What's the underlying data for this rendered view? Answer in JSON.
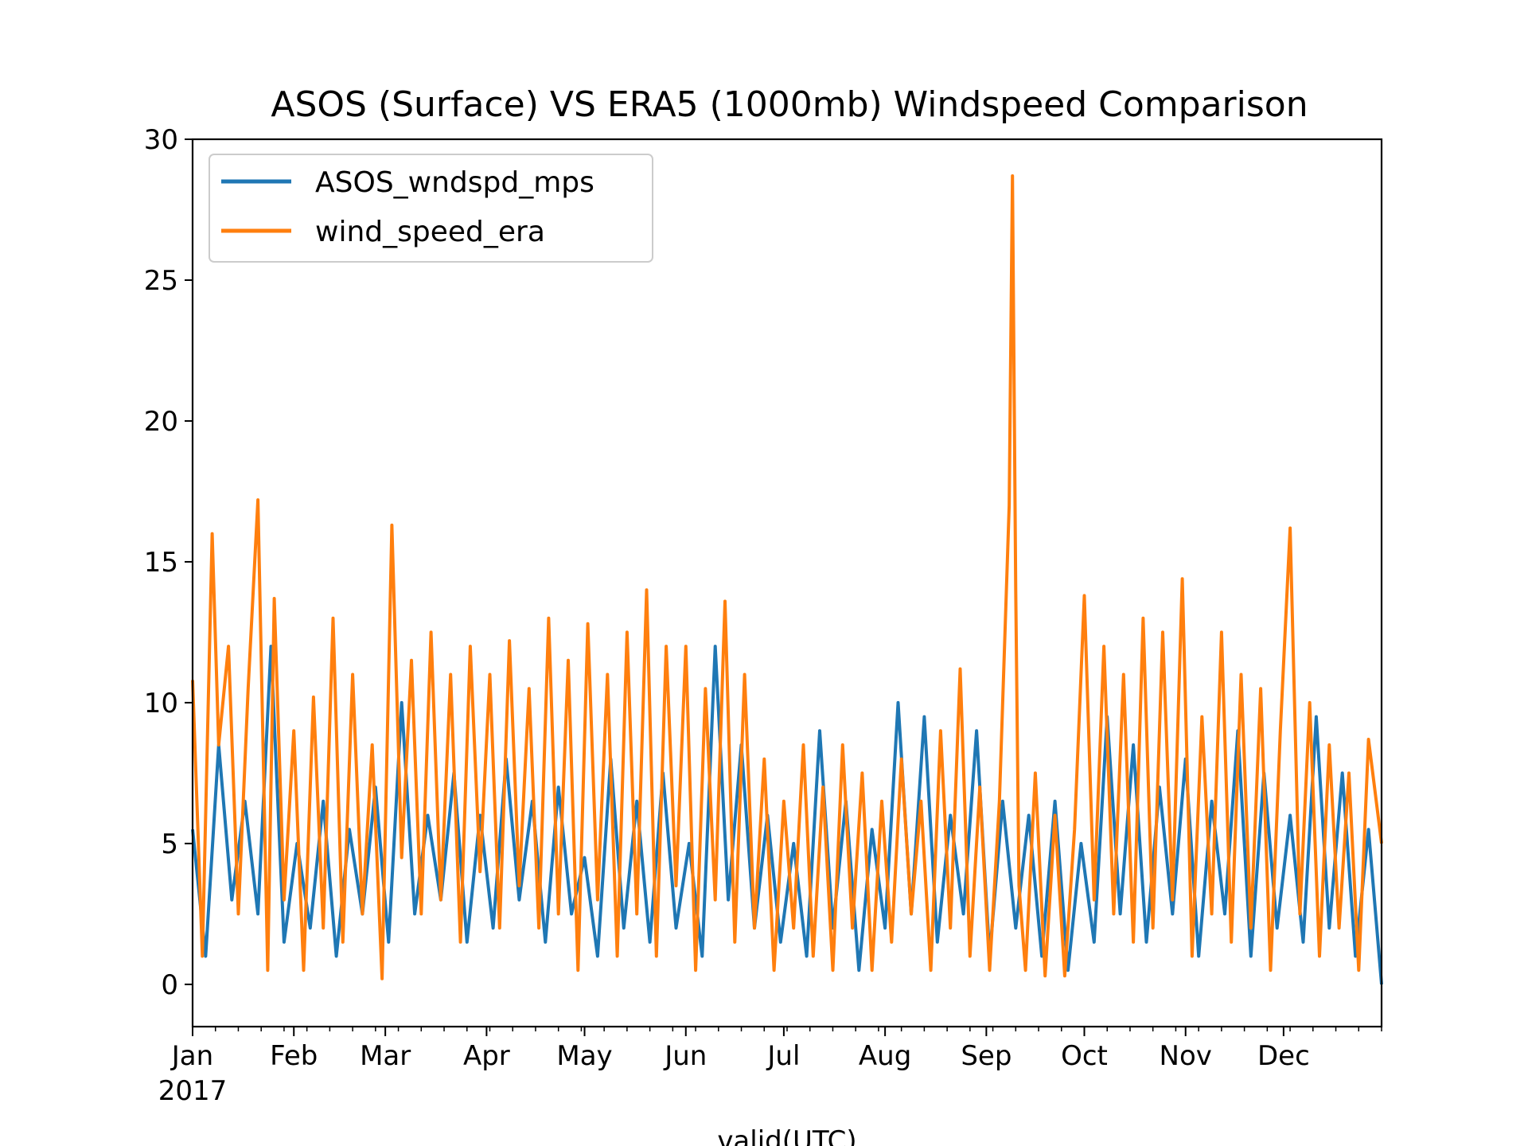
{
  "chart_data": {
    "type": "line",
    "title": "ASOS (Surface) VS ERA5 (1000mb) Windspeed Comparison",
    "xlabel": "valid(UTC)",
    "ylabel": "",
    "xlim": [
      "2017-01-01",
      "2017-12-31"
    ],
    "ylim": [
      -1.5,
      30
    ],
    "yticks": [
      0,
      5,
      10,
      15,
      20,
      25,
      30
    ],
    "xticks": [
      {
        "date": "2017-01-01",
        "label": "Jan",
        "sublabel": "2017"
      },
      {
        "date": "2017-02-01",
        "label": "Feb",
        "sublabel": ""
      },
      {
        "date": "2017-03-01",
        "label": "Mar",
        "sublabel": ""
      },
      {
        "date": "2017-04-01",
        "label": "Apr",
        "sublabel": ""
      },
      {
        "date": "2017-05-01",
        "label": "May",
        "sublabel": ""
      },
      {
        "date": "2017-06-01",
        "label": "Jun",
        "sublabel": ""
      },
      {
        "date": "2017-07-01",
        "label": "Jul",
        "sublabel": ""
      },
      {
        "date": "2017-08-01",
        "label": "Aug",
        "sublabel": ""
      },
      {
        "date": "2017-09-01",
        "label": "Sep",
        "sublabel": ""
      },
      {
        "date": "2017-10-01",
        "label": "Oct",
        "sublabel": ""
      },
      {
        "date": "2017-11-01",
        "label": "Nov",
        "sublabel": ""
      },
      {
        "date": "2017-12-01",
        "label": "Dec",
        "sublabel": ""
      }
    ],
    "legend": "upper-left",
    "grid": false,
    "series": [
      {
        "name": "ASOS_wndspd_mps",
        "color": "#1f77b4",
        "x": [
          "2017-01-01",
          "2017-01-05",
          "2017-01-09",
          "2017-01-13",
          "2017-01-17",
          "2017-01-21",
          "2017-01-25",
          "2017-01-29",
          "2017-02-02",
          "2017-02-06",
          "2017-02-10",
          "2017-02-14",
          "2017-02-18",
          "2017-02-22",
          "2017-02-26",
          "2017-03-02",
          "2017-03-06",
          "2017-03-10",
          "2017-03-14",
          "2017-03-18",
          "2017-03-22",
          "2017-03-26",
          "2017-03-30",
          "2017-04-03",
          "2017-04-07",
          "2017-04-11",
          "2017-04-15",
          "2017-04-19",
          "2017-04-23",
          "2017-04-27",
          "2017-05-01",
          "2017-05-05",
          "2017-05-09",
          "2017-05-13",
          "2017-05-17",
          "2017-05-21",
          "2017-05-25",
          "2017-05-29",
          "2017-06-02",
          "2017-06-06",
          "2017-06-10",
          "2017-06-14",
          "2017-06-18",
          "2017-06-22",
          "2017-06-26",
          "2017-06-30",
          "2017-07-04",
          "2017-07-08",
          "2017-07-12",
          "2017-07-16",
          "2017-07-20",
          "2017-07-24",
          "2017-07-28",
          "2017-08-01",
          "2017-08-05",
          "2017-08-09",
          "2017-08-13",
          "2017-08-17",
          "2017-08-21",
          "2017-08-25",
          "2017-08-29",
          "2017-09-02",
          "2017-09-06",
          "2017-09-10",
          "2017-09-14",
          "2017-09-18",
          "2017-09-22",
          "2017-09-26",
          "2017-09-30",
          "2017-10-04",
          "2017-10-08",
          "2017-10-12",
          "2017-10-16",
          "2017-10-20",
          "2017-10-24",
          "2017-10-28",
          "2017-11-01",
          "2017-11-05",
          "2017-11-09",
          "2017-11-13",
          "2017-11-17",
          "2017-11-21",
          "2017-11-25",
          "2017-11-29",
          "2017-12-03",
          "2017-12-07",
          "2017-12-11",
          "2017-12-15",
          "2017-12-19",
          "2017-12-23",
          "2017-12-27",
          "2017-12-31"
        ],
        "values": [
          5.5,
          1.0,
          8.5,
          3.0,
          6.5,
          2.5,
          12.0,
          1.5,
          5.0,
          2.0,
          6.5,
          1.0,
          5.5,
          2.5,
          7.0,
          1.5,
          10.0,
          2.5,
          6.0,
          3.0,
          7.5,
          1.5,
          6.0,
          2.0,
          8.0,
          3.0,
          6.5,
          1.5,
          7.0,
          2.5,
          4.5,
          1.0,
          8.0,
          2.0,
          6.5,
          1.5,
          7.5,
          2.0,
          5.0,
          1.0,
          12.0,
          3.0,
          8.5,
          2.0,
          6.0,
          1.5,
          5.0,
          1.0,
          9.0,
          2.0,
          6.5,
          0.5,
          5.5,
          2.0,
          10.0,
          2.5,
          9.5,
          1.5,
          6.0,
          2.5,
          9.0,
          1.0,
          6.5,
          2.0,
          6.0,
          1.0,
          6.5,
          0.5,
          5.0,
          1.5,
          9.5,
          2.5,
          8.5,
          1.5,
          7.0,
          2.5,
          8.0,
          1.0,
          6.5,
          2.5,
          9.0,
          1.0,
          7.5,
          2.0,
          6.0,
          1.5,
          9.5,
          2.0,
          7.5,
          1.0,
          5.5,
          0.0
        ]
      },
      {
        "name": "wind_speed_era",
        "color": "#ff7f0e",
        "x": [
          "2017-01-01",
          "2017-01-04",
          "2017-01-07",
          "2017-01-09",
          "2017-01-12",
          "2017-01-15",
          "2017-01-18",
          "2017-01-21",
          "2017-01-24",
          "2017-01-26",
          "2017-01-29",
          "2017-02-01",
          "2017-02-04",
          "2017-02-07",
          "2017-02-10",
          "2017-02-13",
          "2017-02-16",
          "2017-02-19",
          "2017-02-22",
          "2017-02-25",
          "2017-02-28",
          "2017-03-03",
          "2017-03-06",
          "2017-03-09",
          "2017-03-12",
          "2017-03-15",
          "2017-03-18",
          "2017-03-21",
          "2017-03-24",
          "2017-03-27",
          "2017-03-30",
          "2017-04-02",
          "2017-04-05",
          "2017-04-08",
          "2017-04-11",
          "2017-04-14",
          "2017-04-17",
          "2017-04-20",
          "2017-04-23",
          "2017-04-26",
          "2017-04-29",
          "2017-05-02",
          "2017-05-05",
          "2017-05-08",
          "2017-05-11",
          "2017-05-14",
          "2017-05-17",
          "2017-05-20",
          "2017-05-23",
          "2017-05-26",
          "2017-05-29",
          "2017-06-01",
          "2017-06-04",
          "2017-06-07",
          "2017-06-10",
          "2017-06-13",
          "2017-06-16",
          "2017-06-19",
          "2017-06-22",
          "2017-06-25",
          "2017-06-28",
          "2017-07-01",
          "2017-07-04",
          "2017-07-07",
          "2017-07-10",
          "2017-07-13",
          "2017-07-16",
          "2017-07-19",
          "2017-07-22",
          "2017-07-25",
          "2017-07-28",
          "2017-07-31",
          "2017-08-03",
          "2017-08-06",
          "2017-08-09",
          "2017-08-12",
          "2017-08-15",
          "2017-08-18",
          "2017-08-21",
          "2017-08-24",
          "2017-08-27",
          "2017-08-30",
          "2017-09-02",
          "2017-09-05",
          "2017-09-08",
          "2017-09-09",
          "2017-09-10",
          "2017-09-11",
          "2017-09-13",
          "2017-09-16",
          "2017-09-19",
          "2017-09-22",
          "2017-09-25",
          "2017-09-28",
          "2017-10-01",
          "2017-10-04",
          "2017-10-07",
          "2017-10-10",
          "2017-10-13",
          "2017-10-16",
          "2017-10-19",
          "2017-10-22",
          "2017-10-25",
          "2017-10-28",
          "2017-10-31",
          "2017-11-03",
          "2017-11-06",
          "2017-11-09",
          "2017-11-12",
          "2017-11-15",
          "2017-11-18",
          "2017-11-21",
          "2017-11-24",
          "2017-11-27",
          "2017-11-30",
          "2017-12-03",
          "2017-12-06",
          "2017-12-09",
          "2017-12-12",
          "2017-12-15",
          "2017-12-18",
          "2017-12-21",
          "2017-12-24",
          "2017-12-27",
          "2017-12-31"
        ],
        "values": [
          10.8,
          1.0,
          16.0,
          8.5,
          12.0,
          2.5,
          10.5,
          17.2,
          0.5,
          13.7,
          3.0,
          9.0,
          0.5,
          10.2,
          2.0,
          13.0,
          1.5,
          11.0,
          2.5,
          8.5,
          0.2,
          16.3,
          4.5,
          11.5,
          2.5,
          12.5,
          3.0,
          11.0,
          1.5,
          12.0,
          4.0,
          11.0,
          2.0,
          12.2,
          3.5,
          10.5,
          2.0,
          13.0,
          2.5,
          11.5,
          0.5,
          12.8,
          3.0,
          11.0,
          1.0,
          12.5,
          2.5,
          14.0,
          1.0,
          12.0,
          3.5,
          12.0,
          0.5,
          10.5,
          3.0,
          13.6,
          1.5,
          11.0,
          2.0,
          8.0,
          0.5,
          6.5,
          2.0,
          8.5,
          1.0,
          7.0,
          0.5,
          8.5,
          2.0,
          7.5,
          0.5,
          6.5,
          1.5,
          8.0,
          2.5,
          6.5,
          0.5,
          9.0,
          2.0,
          11.2,
          1.0,
          7.0,
          0.5,
          6.5,
          17.0,
          28.7,
          14.0,
          3.5,
          0.5,
          7.5,
          0.3,
          6.0,
          0.3,
          5.5,
          13.8,
          3.0,
          12.0,
          2.5,
          11.0,
          1.5,
          13.0,
          2.0,
          12.5,
          3.0,
          14.4,
          1.0,
          9.5,
          2.5,
          12.5,
          1.5,
          11.0,
          2.0,
          10.5,
          0.5,
          9.0,
          16.2,
          2.5,
          10.0,
          1.0,
          8.5,
          2.0,
          7.5,
          0.5,
          8.7,
          5.0
        ]
      }
    ]
  }
}
